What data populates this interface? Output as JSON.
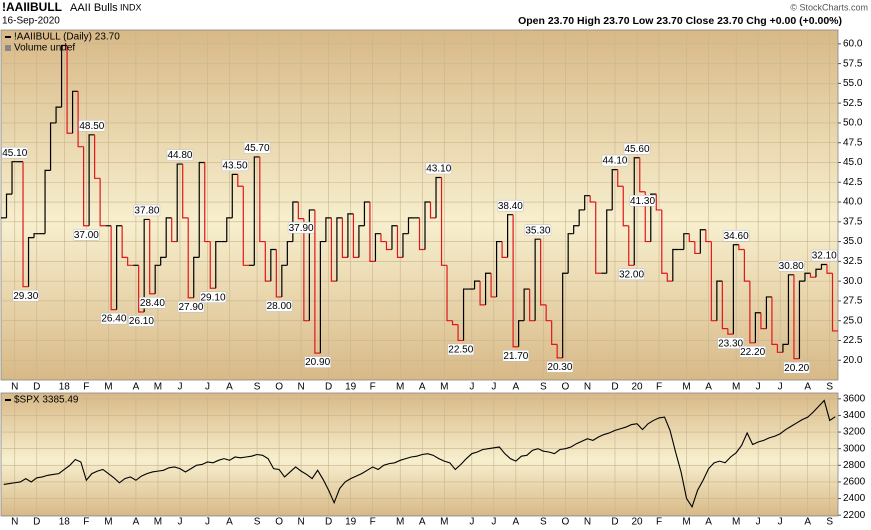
{
  "header": {
    "symbol": "!AAIIBULL",
    "name": "AAII Bulls",
    "exchange": "INDX",
    "date": "16-Sep-2020",
    "quote": "Open 23.70  High 23.70  Low 23.70  Close 23.70  Chg +0.00 (+0.00%)",
    "credit": "© StockCharts.com"
  },
  "chart_data": [
    {
      "type": "step",
      "title": "!AAIIBULL (Daily) 23.70",
      "subtitle": "Volume undef",
      "categories": [
        null,
        null,
        "N",
        null,
        null,
        null,
        "D",
        null,
        null,
        null,
        null,
        "18",
        null,
        null,
        null,
        "F",
        null,
        null,
        null,
        "M",
        null,
        null,
        null,
        null,
        "A",
        null,
        null,
        null,
        "M",
        null,
        null,
        null,
        "J",
        null,
        null,
        null,
        null,
        "J",
        null,
        null,
        null,
        "A",
        null,
        null,
        null,
        null,
        "S",
        null,
        null,
        null,
        "O",
        null,
        null,
        null,
        "N",
        null,
        null,
        null,
        null,
        "D",
        null,
        null,
        null,
        "19",
        null,
        null,
        null,
        "F",
        null,
        null,
        null,
        null,
        "M",
        null,
        null,
        null,
        "A",
        null,
        null,
        null,
        "M",
        null,
        null,
        null,
        null,
        "J",
        null,
        null,
        null,
        "J",
        null,
        null,
        null,
        "A",
        null,
        null,
        null,
        null,
        "S",
        null,
        null,
        null,
        "O",
        null,
        null,
        null,
        "N",
        null,
        null,
        null,
        null,
        "D",
        null,
        null,
        null,
        "20",
        null,
        null,
        null,
        "F",
        null,
        null,
        null,
        null,
        "M",
        null,
        null,
        null,
        "A",
        null,
        null,
        null,
        null,
        "M",
        null,
        null,
        null,
        "J",
        null,
        null,
        null,
        "J",
        null,
        null,
        null,
        null,
        "A",
        null,
        null,
        null,
        "S",
        null
      ],
      "values": [
        38,
        41,
        45.1,
        45.1,
        29.3,
        35.5,
        36,
        36,
        44,
        50,
        52,
        59.8,
        48.7,
        54,
        47,
        37,
        48.5,
        43,
        37,
        37,
        26.4,
        37,
        33,
        32,
        32,
        26.1,
        37.8,
        28.4,
        32,
        33,
        38,
        35,
        44.8,
        38,
        27.9,
        33,
        45,
        35,
        29.1,
        35,
        35,
        38,
        43.5,
        42,
        32,
        32,
        45.7,
        35,
        30,
        34,
        28,
        32,
        35,
        40,
        37.9,
        25,
        39,
        20.9,
        35,
        38,
        30,
        38,
        33,
        38.5,
        33,
        37,
        40,
        32.5,
        36,
        35,
        34,
        37,
        33,
        36,
        38,
        38,
        34,
        40,
        38,
        43.1,
        32,
        25,
        24.5,
        22.5,
        29,
        29,
        30,
        27,
        31,
        28,
        35,
        33,
        38.4,
        21.7,
        25,
        29,
        25,
        35.3,
        27,
        25,
        22,
        20.3,
        31,
        36,
        37,
        39,
        40.8,
        40,
        31,
        31,
        39,
        44.1,
        42,
        37,
        32,
        45.6,
        41.3,
        35,
        41,
        39,
        31,
        30,
        34,
        34,
        36,
        35,
        33.5,
        36.5,
        35,
        25,
        30,
        24,
        23.3,
        34.6,
        34,
        30,
        22.2,
        26,
        24,
        28,
        22,
        21,
        22,
        30.8,
        20.2,
        30,
        31,
        30.5,
        31.5,
        32.1,
        31,
        23.7
      ],
      "value_labels": [
        null,
        null,
        "45.10",
        null,
        "29.30",
        null,
        null,
        null,
        null,
        null,
        null,
        null,
        null,
        null,
        null,
        "37.00",
        "48.50",
        null,
        null,
        null,
        "26.40",
        null,
        null,
        null,
        null,
        "26.10",
        "37.80",
        "28.40",
        null,
        null,
        null,
        null,
        "44.80",
        null,
        "27.90",
        null,
        null,
        null,
        "29.10",
        null,
        null,
        null,
        "43.50",
        null,
        null,
        null,
        "45.70",
        null,
        null,
        null,
        "28.00",
        null,
        null,
        null,
        "37.90",
        null,
        null,
        "20.90",
        null,
        null,
        null,
        null,
        null,
        null,
        null,
        null,
        null,
        null,
        null,
        null,
        null,
        null,
        null,
        null,
        null,
        null,
        null,
        null,
        null,
        "43.10",
        null,
        null,
        null,
        "22.50",
        null,
        null,
        null,
        null,
        null,
        null,
        null,
        null,
        "38.40",
        "21.70",
        null,
        null,
        null,
        "35.30",
        null,
        null,
        null,
        "20.30",
        null,
        null,
        null,
        null,
        null,
        null,
        null,
        null,
        null,
        "44.10",
        null,
        null,
        "32.00",
        "45.60",
        "41.30",
        null,
        null,
        null,
        null,
        null,
        null,
        null,
        null,
        null,
        null,
        null,
        null,
        null,
        null,
        null,
        "23.30",
        "34.60",
        null,
        null,
        "22.20",
        null,
        null,
        null,
        null,
        null,
        null,
        "30.80",
        "20.20",
        null,
        null,
        null,
        null,
        "32.10",
        null,
        null
      ],
      "up_color": "#000000",
      "down_color": "#e0161c",
      "ylim": [
        17.5,
        61.75
      ],
      "yticks": [
        {
          "value": 20,
          "label": "20.0"
        },
        22.5,
        {
          "value": 25,
          "label": "25.0"
        },
        27.5,
        {
          "value": 30,
          "label": "30.0"
        },
        32.5,
        {
          "value": 35,
          "label": "35.0"
        },
        37.5,
        {
          "value": 40,
          "label": "40.0"
        },
        42.5,
        {
          "value": 45,
          "label": "45.0"
        },
        47.5,
        {
          "value": 50,
          "label": "50.0"
        },
        52.5,
        {
          "value": 55,
          "label": "55.0"
        },
        57.5,
        {
          "value": 60,
          "label": "60.0"
        }
      ],
      "grid": true
    },
    {
      "type": "line",
      "title": "$SPX 3385.49",
      "categories": [
        null,
        null,
        "N",
        null,
        null,
        null,
        "D",
        null,
        null,
        null,
        null,
        "18",
        null,
        null,
        null,
        "F",
        null,
        null,
        null,
        "M",
        null,
        null,
        null,
        null,
        "A",
        null,
        null,
        null,
        "M",
        null,
        null,
        null,
        "J",
        null,
        null,
        null,
        null,
        "J",
        null,
        null,
        null,
        "A",
        null,
        null,
        null,
        null,
        "S",
        null,
        null,
        null,
        "O",
        null,
        null,
        null,
        "N",
        null,
        null,
        null,
        null,
        "D",
        null,
        null,
        null,
        "19",
        null,
        null,
        null,
        "F",
        null,
        null,
        null,
        null,
        "M",
        null,
        null,
        null,
        "A",
        null,
        null,
        null,
        "M",
        null,
        null,
        null,
        null,
        "J",
        null,
        null,
        null,
        "J",
        null,
        null,
        null,
        "A",
        null,
        null,
        null,
        null,
        "S",
        null,
        null,
        null,
        "O",
        null,
        null,
        null,
        "N",
        null,
        null,
        null,
        null,
        "D",
        null,
        null,
        null,
        "20",
        null,
        null,
        null,
        "F",
        null,
        null,
        null,
        null,
        "M",
        null,
        null,
        null,
        "A",
        null,
        null,
        null,
        null,
        "M",
        null,
        null,
        null,
        "J",
        null,
        null,
        null,
        "J",
        null,
        null,
        null,
        null,
        "A",
        null,
        null,
        null,
        "S",
        null
      ],
      "values": [
        2570,
        2580,
        2590,
        2600,
        2640,
        2600,
        2650,
        2660,
        2680,
        2690,
        2700,
        2750,
        2800,
        2870,
        2840,
        2620,
        2700,
        2730,
        2750,
        2700,
        2650,
        2590,
        2640,
        2660,
        2620,
        2670,
        2700,
        2720,
        2730,
        2740,
        2770,
        2780,
        2760,
        2720,
        2760,
        2800,
        2810,
        2840,
        2830,
        2860,
        2880,
        2860,
        2900,
        2890,
        2900,
        2910,
        2930,
        2920,
        2880,
        2760,
        2750,
        2660,
        2720,
        2780,
        2730,
        2690,
        2640,
        2740,
        2630,
        2500,
        2350,
        2520,
        2600,
        2640,
        2670,
        2700,
        2740,
        2780,
        2750,
        2800,
        2820,
        2830,
        2860,
        2880,
        2900,
        2910,
        2930,
        2940,
        2920,
        2880,
        2850,
        2830,
        2750,
        2810,
        2880,
        2940,
        2960,
        2990,
        3000,
        3010,
        3020,
        2940,
        2880,
        2850,
        2910,
        2920,
        2980,
        3000,
        2970,
        2960,
        2940,
        2990,
        3000,
        3020,
        3060,
        3090,
        3120,
        3100,
        3140,
        3170,
        3190,
        3220,
        3240,
        3260,
        3290,
        3300,
        3230,
        3300,
        3340,
        3370,
        3380,
        3220,
        2960,
        2720,
        2400,
        2300,
        2500,
        2620,
        2760,
        2830,
        2850,
        2830,
        2900,
        2950,
        3040,
        3190,
        3050,
        3080,
        3100,
        3130,
        3150,
        3180,
        3230,
        3270,
        3310,
        3350,
        3380,
        3440,
        3510,
        3580,
        3340,
        3385.49
      ],
      "color": "#000000",
      "ylim": [
        2190,
        3670
      ],
      "yticks": [
        2200,
        2400,
        2600,
        2800,
        3000,
        3200,
        3400,
        3600
      ],
      "grid": true
    }
  ]
}
